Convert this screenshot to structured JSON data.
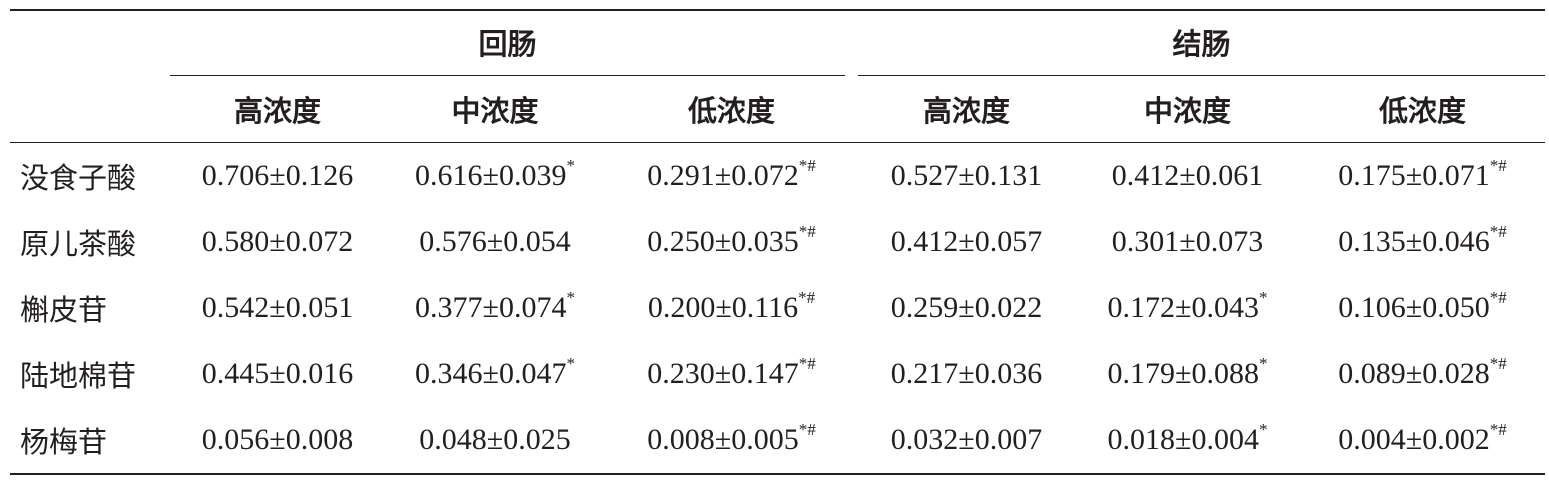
{
  "table": {
    "groups": [
      "回肠",
      "结肠"
    ],
    "subheaders": [
      "高浓度",
      "中浓度",
      "低浓度",
      "高浓度",
      "中浓度",
      "低浓度"
    ],
    "rows": [
      {
        "name": "没食子酸",
        "cells": [
          {
            "text": "0.706±0.126"
          },
          {
            "text": "0.616±0.039",
            "sup": "*"
          },
          {
            "text": "0.291±0.072",
            "sup": "*#"
          },
          {
            "text": "0.527±0.131"
          },
          {
            "text": "0.412±0.061"
          },
          {
            "text": "0.175±0.071",
            "sup": "*#"
          }
        ]
      },
      {
        "name": "原儿茶酸",
        "cells": [
          {
            "text": "0.580±0.072"
          },
          {
            "text": "0.576±0.054"
          },
          {
            "text": "0.250±0.035",
            "sup": "*#"
          },
          {
            "text": "0.412±0.057"
          },
          {
            "text": "0.301±0.073"
          },
          {
            "text": "0.135±0.046",
            "sup": "*#"
          }
        ]
      },
      {
        "name": "槲皮苷",
        "cells": [
          {
            "text": "0.542±0.051"
          },
          {
            "text": "0.377±0.074",
            "sup": "*"
          },
          {
            "text": "0.200±0.116",
            "sup": "*#"
          },
          {
            "text": "0.259±0.022"
          },
          {
            "text": "0.172±0.043",
            "sup": "*"
          },
          {
            "text": "0.106±0.050",
            "sup": "*#"
          }
        ]
      },
      {
        "name": "陆地棉苷",
        "cells": [
          {
            "text": "0.445±0.016"
          },
          {
            "text": "0.346±0.047",
            "sup": "*"
          },
          {
            "text": "0.230±0.147",
            "sup": "*#"
          },
          {
            "text": "0.217±0.036"
          },
          {
            "text": "0.179±0.088",
            "sup": "*"
          },
          {
            "text": "0.089±0.028",
            "sup": "*#"
          }
        ]
      },
      {
        "name": "杨梅苷",
        "cells": [
          {
            "text": "0.056±0.008"
          },
          {
            "text": "0.048±0.025"
          },
          {
            "text": "0.008±0.005",
            "sup": "*#"
          },
          {
            "text": "0.032±0.007"
          },
          {
            "text": "0.018±0.004",
            "sup": "*"
          },
          {
            "text": "0.004±0.002",
            "sup": "*#"
          }
        ]
      }
    ]
  }
}
